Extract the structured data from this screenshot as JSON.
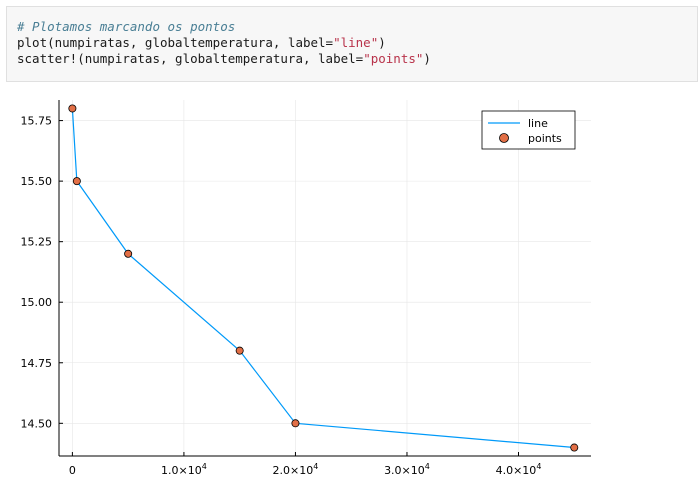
{
  "code_cell": {
    "comment": "# Plotamos marcando os pontos",
    "line1_prefix": "plot(numpiratas, globaltemperatura, label=",
    "line1_string": "\"line\"",
    "line1_suffix": ")",
    "line2_prefix": "scatter!(numpiratas, globaltemperatura, label=",
    "line2_string": "\"points\"",
    "line2_suffix": ")"
  },
  "colors": {
    "line": "#009af9",
    "points": "#e26f46",
    "grid": "#e6e6e6",
    "axis": "#000000"
  },
  "chart_data": {
    "type": "line",
    "x": [
      0,
      400,
      5000,
      15000,
      20000,
      45000
    ],
    "series": [
      {
        "name": "line",
        "values": [
          15.8,
          15.5,
          15.2,
          14.8,
          14.5,
          14.4
        ]
      },
      {
        "name": "points",
        "values": [
          15.8,
          15.5,
          15.2,
          14.8,
          14.5,
          14.4
        ]
      }
    ],
    "xlim": [
      -1200,
      46500
    ],
    "ylim": [
      14.365,
      15.835
    ],
    "xticks": [
      0,
      10000,
      20000,
      30000,
      40000
    ],
    "xtick_labels": [
      {
        "base": "0",
        "exp": ""
      },
      {
        "base": "1.0×10",
        "exp": "4"
      },
      {
        "base": "2.0×10",
        "exp": "4"
      },
      {
        "base": "3.0×10",
        "exp": "4"
      },
      {
        "base": "4.0×10",
        "exp": "4"
      }
    ],
    "yticks": [
      14.5,
      14.75,
      15.0,
      15.25,
      15.5,
      15.75
    ],
    "ytick_labels": [
      "14.50",
      "14.75",
      "15.00",
      "15.25",
      "15.50",
      "15.75"
    ],
    "grid": true,
    "legend_position": "top-right",
    "title": "",
    "xlabel": "",
    "ylabel": ""
  }
}
